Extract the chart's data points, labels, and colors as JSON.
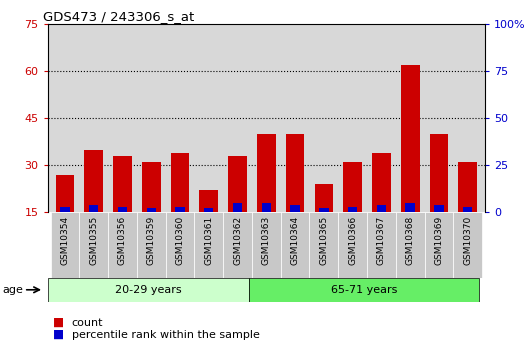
{
  "title": "GDS473 / 243306_s_at",
  "samples": [
    "GSM10354",
    "GSM10355",
    "GSM10356",
    "GSM10359",
    "GSM10360",
    "GSM10361",
    "GSM10362",
    "GSM10363",
    "GSM10364",
    "GSM10365",
    "GSM10366",
    "GSM10367",
    "GSM10368",
    "GSM10369",
    "GSM10370"
  ],
  "counts": [
    27,
    35,
    33,
    31,
    34,
    22,
    33,
    40,
    40,
    24,
    31,
    34,
    62,
    40,
    31
  ],
  "percentile_ranks": [
    3,
    4,
    3,
    2,
    3,
    2,
    5,
    5,
    4,
    2,
    3,
    4,
    5,
    4,
    3
  ],
  "group1_label": "20-29 years",
  "group2_label": "65-71 years",
  "group1_count": 7,
  "group2_count": 8,
  "ylim_left": [
    15,
    75
  ],
  "ylim_right": [
    0,
    100
  ],
  "yticks_left": [
    15,
    30,
    45,
    60,
    75
  ],
  "yticks_right": [
    0,
    25,
    50,
    75,
    100
  ],
  "bar_bottom": 15,
  "count_color": "#cc0000",
  "percentile_color": "#0000cc",
  "group1_bg": "#ccffcc",
  "group2_bg": "#66ee66",
  "plot_bg": "#d8d8d8",
  "xtick_bg": "#c8c8c8",
  "legend_count_label": "count",
  "legend_pct_label": "percentile rank within the sample",
  "age_label": "age",
  "grid_yticks": [
    30,
    45,
    60
  ]
}
